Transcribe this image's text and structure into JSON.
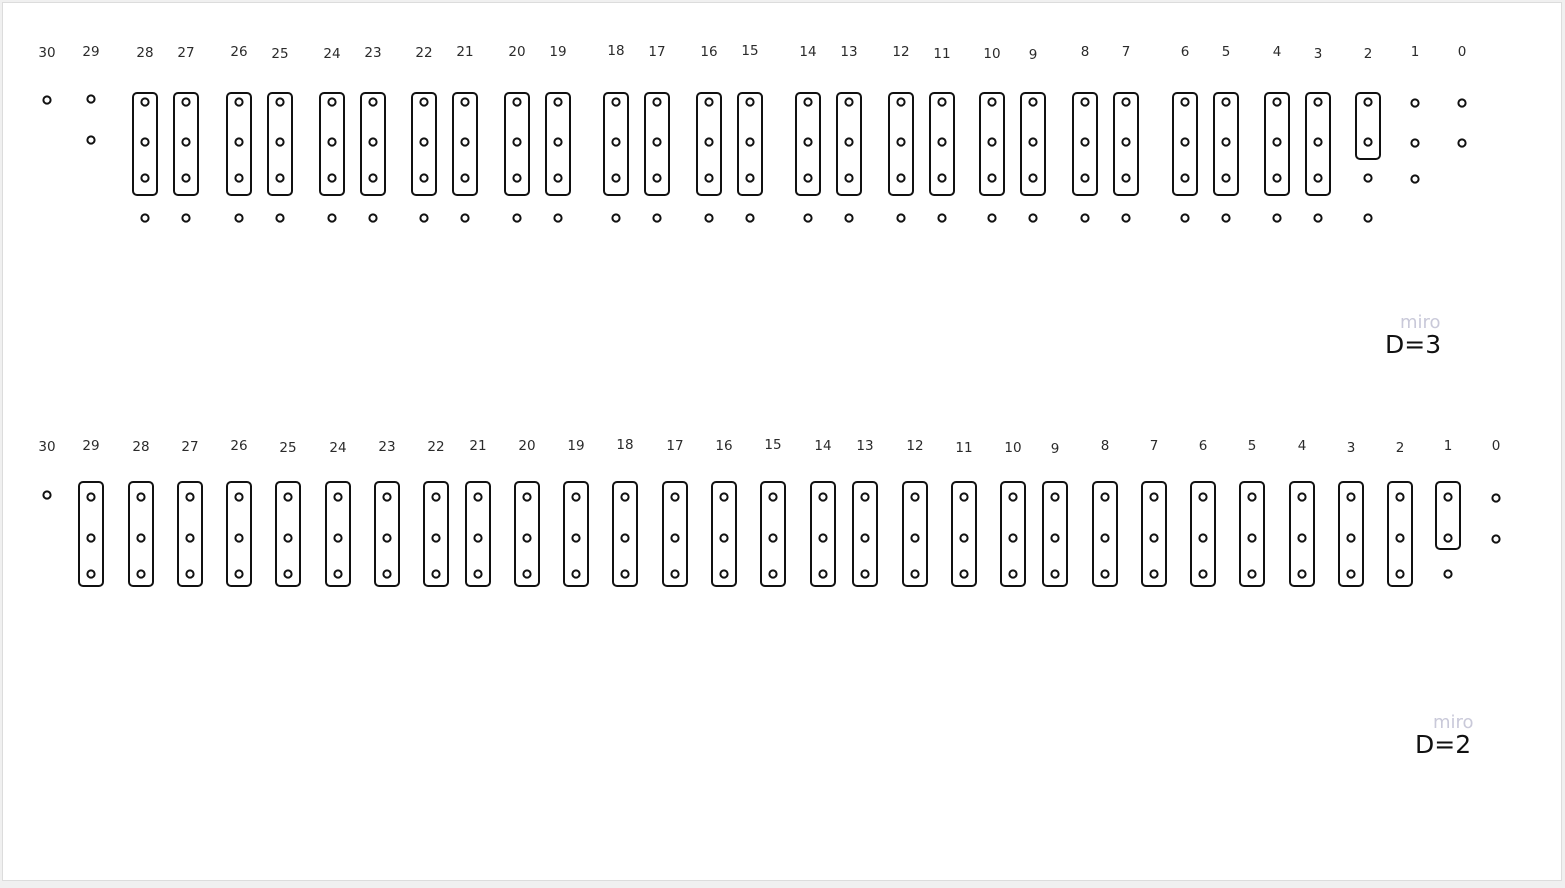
{
  "diagrams": [
    {
      "id": "d3",
      "label": "D=3",
      "watermark": "miro",
      "labels": [
        "30",
        "29",
        "28",
        "27",
        "26",
        "25",
        "24",
        "23",
        "22",
        "21",
        "20",
        "19",
        "18",
        "17",
        "16",
        "15",
        "14",
        "13",
        "12",
        "11",
        "10",
        "9",
        "8",
        "7",
        "6",
        "5",
        "4",
        "3",
        "2",
        "1",
        "0"
      ],
      "columns": [
        {
          "n": "30",
          "boxed": 0,
          "dots": 1,
          "below": 0
        },
        {
          "n": "29",
          "boxed": 0,
          "dots": 2,
          "below": 0
        },
        {
          "n": "28",
          "boxed": 3,
          "dots": 0,
          "below": 1
        },
        {
          "n": "27",
          "boxed": 3,
          "dots": 0,
          "below": 1
        },
        {
          "n": "26",
          "boxed": 3,
          "dots": 0,
          "below": 1
        },
        {
          "n": "25",
          "boxed": 3,
          "dots": 0,
          "below": 1
        },
        {
          "n": "24",
          "boxed": 3,
          "dots": 0,
          "below": 1
        },
        {
          "n": "23",
          "boxed": 3,
          "dots": 0,
          "below": 1
        },
        {
          "n": "22",
          "boxed": 3,
          "dots": 0,
          "below": 1
        },
        {
          "n": "21",
          "boxed": 3,
          "dots": 0,
          "below": 1
        },
        {
          "n": "20",
          "boxed": 3,
          "dots": 0,
          "below": 1
        },
        {
          "n": "19",
          "boxed": 3,
          "dots": 0,
          "below": 1
        },
        {
          "n": "18",
          "boxed": 3,
          "dots": 0,
          "below": 1
        },
        {
          "n": "17",
          "boxed": 3,
          "dots": 0,
          "below": 1
        },
        {
          "n": "16",
          "boxed": 3,
          "dots": 0,
          "below": 1
        },
        {
          "n": "15",
          "boxed": 3,
          "dots": 0,
          "below": 1
        },
        {
          "n": "14",
          "boxed": 3,
          "dots": 0,
          "below": 1
        },
        {
          "n": "13",
          "boxed": 3,
          "dots": 0,
          "below": 1
        },
        {
          "n": "12",
          "boxed": 3,
          "dots": 0,
          "below": 1
        },
        {
          "n": "11",
          "boxed": 3,
          "dots": 0,
          "below": 1
        },
        {
          "n": "10",
          "boxed": 3,
          "dots": 0,
          "below": 1
        },
        {
          "n": "9",
          "boxed": 3,
          "dots": 0,
          "below": 1
        },
        {
          "n": "8",
          "boxed": 3,
          "dots": 0,
          "below": 1
        },
        {
          "n": "7",
          "boxed": 3,
          "dots": 0,
          "below": 1
        },
        {
          "n": "6",
          "boxed": 3,
          "dots": 0,
          "below": 1
        },
        {
          "n": "5",
          "boxed": 3,
          "dots": 0,
          "below": 1
        },
        {
          "n": "4",
          "boxed": 3,
          "dots": 0,
          "below": 1
        },
        {
          "n": "3",
          "boxed": 3,
          "dots": 0,
          "below": 1
        },
        {
          "n": "2",
          "boxed": 2,
          "dots": 1,
          "below": 1
        },
        {
          "n": "1",
          "boxed": 0,
          "dots": 3,
          "below": 0
        },
        {
          "n": "0",
          "boxed": 0,
          "dots": 2,
          "below": 0
        }
      ]
    },
    {
      "id": "d2",
      "label": "D=2",
      "watermark": "miro",
      "labels": [
        "30",
        "29",
        "28",
        "27",
        "26",
        "25",
        "24",
        "23",
        "22",
        "21",
        "20",
        "19",
        "18",
        "17",
        "16",
        "15",
        "14",
        "13",
        "12",
        "11",
        "10",
        "9",
        "8",
        "7",
        "6",
        "5",
        "4",
        "3",
        "2",
        "1",
        "0"
      ],
      "columns": [
        {
          "n": "30",
          "boxed": 0,
          "dots": 1,
          "below": 0
        },
        {
          "n": "29",
          "boxed": 3,
          "dots": 0,
          "below": 0
        },
        {
          "n": "28",
          "boxed": 3,
          "dots": 0,
          "below": 0
        },
        {
          "n": "27",
          "boxed": 3,
          "dots": 0,
          "below": 0
        },
        {
          "n": "26",
          "boxed": 3,
          "dots": 0,
          "below": 0
        },
        {
          "n": "25",
          "boxed": 3,
          "dots": 0,
          "below": 0
        },
        {
          "n": "24",
          "boxed": 3,
          "dots": 0,
          "below": 0
        },
        {
          "n": "23",
          "boxed": 3,
          "dots": 0,
          "below": 0
        },
        {
          "n": "22",
          "boxed": 3,
          "dots": 0,
          "below": 0
        },
        {
          "n": "21",
          "boxed": 3,
          "dots": 0,
          "below": 0
        },
        {
          "n": "20",
          "boxed": 3,
          "dots": 0,
          "below": 0
        },
        {
          "n": "19",
          "boxed": 3,
          "dots": 0,
          "below": 0
        },
        {
          "n": "18",
          "boxed": 3,
          "dots": 0,
          "below": 0
        },
        {
          "n": "17",
          "boxed": 3,
          "dots": 0,
          "below": 0
        },
        {
          "n": "16",
          "boxed": 3,
          "dots": 0,
          "below": 0
        },
        {
          "n": "15",
          "boxed": 3,
          "dots": 0,
          "below": 0
        },
        {
          "n": "14",
          "boxed": 3,
          "dots": 0,
          "below": 0
        },
        {
          "n": "13",
          "boxed": 3,
          "dots": 0,
          "below": 0
        },
        {
          "n": "12",
          "boxed": 3,
          "dots": 0,
          "below": 0
        },
        {
          "n": "11",
          "boxed": 3,
          "dots": 0,
          "below": 0
        },
        {
          "n": "10",
          "boxed": 3,
          "dots": 0,
          "below": 0
        },
        {
          "n": "9",
          "boxed": 3,
          "dots": 0,
          "below": 0
        },
        {
          "n": "8",
          "boxed": 3,
          "dots": 0,
          "below": 0
        },
        {
          "n": "7",
          "boxed": 3,
          "dots": 0,
          "below": 0
        },
        {
          "n": "6",
          "boxed": 3,
          "dots": 0,
          "below": 0
        },
        {
          "n": "5",
          "boxed": 3,
          "dots": 0,
          "below": 0
        },
        {
          "n": "4",
          "boxed": 3,
          "dots": 0,
          "below": 0
        },
        {
          "n": "3",
          "boxed": 3,
          "dots": 0,
          "below": 0
        },
        {
          "n": "2",
          "boxed": 3,
          "dots": 0,
          "below": 0
        },
        {
          "n": "1",
          "boxed": 2,
          "dots": 1,
          "below": 0
        },
        {
          "n": "0",
          "boxed": 0,
          "dots": 2,
          "below": 0
        }
      ]
    }
  ]
}
